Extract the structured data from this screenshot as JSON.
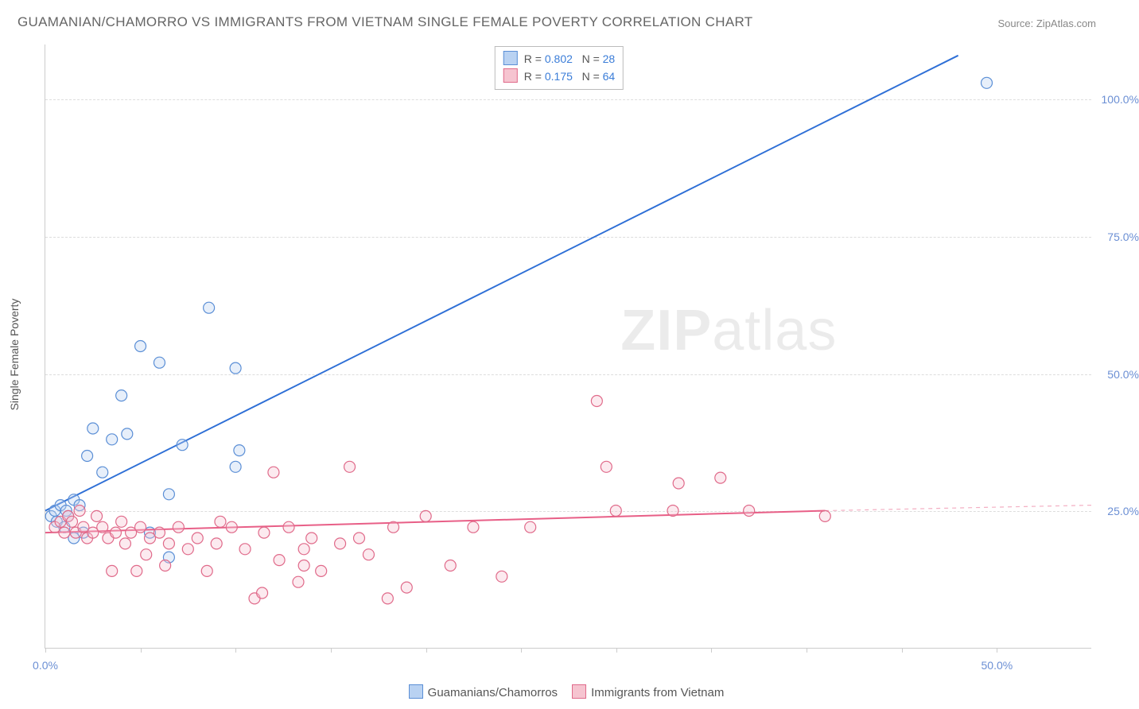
{
  "title": "GUAMANIAN/CHAMORRO VS IMMIGRANTS FROM VIETNAM SINGLE FEMALE POVERTY CORRELATION CHART",
  "source_label": "Source: ZipAtlas.com",
  "watermark": {
    "bold": "ZIP",
    "light": "atlas"
  },
  "y_axis": {
    "label": "Single Female Poverty",
    "min": 0,
    "max": 110,
    "gridlines": [
      25,
      50,
      75,
      100
    ],
    "tick_labels": [
      "25.0%",
      "50.0%",
      "75.0%",
      "100.0%"
    ],
    "label_color": "#6b8fd4",
    "label_fontsize": 14
  },
  "x_axis": {
    "min": 0,
    "max": 55,
    "ticks_minor": [
      5,
      10,
      15,
      20,
      25,
      30,
      35,
      40,
      45
    ],
    "ticks_labeled": [
      0,
      50
    ],
    "tick_labels": [
      "0.0%",
      "50.0%"
    ],
    "label_color": "#6b8fd4"
  },
  "legend_bottom": {
    "items": [
      {
        "label": "Guamanians/Chamorros",
        "fill": "#b9d2f2",
        "border": "#5b8fd6"
      },
      {
        "label": "Immigrants from Vietnam",
        "fill": "#f6c4d0",
        "border": "#e06a8a"
      }
    ]
  },
  "legend_stats": {
    "rows": [
      {
        "fill": "#b9d2f2",
        "border": "#5b8fd6",
        "r_label": "R =",
        "r": "0.802",
        "n_label": "N =",
        "n": "28"
      },
      {
        "fill": "#f6c4d0",
        "border": "#e06a8a",
        "r_label": "R =",
        "r": "0.175",
        "n_label": "N =",
        "n": "64"
      }
    ]
  },
  "styles": {
    "background": "#ffffff",
    "grid_color": "#dddddd",
    "axis_color": "#cccccc",
    "title_color": "#666666",
    "marker_radius": 7,
    "marker_stroke_width": 1.2,
    "marker_fill_opacity": 0.35,
    "line_width": 2
  },
  "series": [
    {
      "name": "Guamanians/Chamorros",
      "fill": "#b9d2f2",
      "stroke": "#5b8fd6",
      "line_color": "#2e6fd6",
      "regression": {
        "x1": 0,
        "y1": 25,
        "x2": 48,
        "y2": 108
      },
      "points": [
        [
          0.3,
          24
        ],
        [
          0.5,
          25
        ],
        [
          0.6,
          23
        ],
        [
          0.8,
          26
        ],
        [
          1.0,
          22
        ],
        [
          1.1,
          25
        ],
        [
          1.2,
          24
        ],
        [
          1.5,
          27
        ],
        [
          1.5,
          20
        ],
        [
          1.8,
          26
        ],
        [
          2.0,
          21
        ],
        [
          2.2,
          35
        ],
        [
          2.5,
          40
        ],
        [
          3.0,
          32
        ],
        [
          3.5,
          38
        ],
        [
          4.0,
          46
        ],
        [
          4.3,
          39
        ],
        [
          5.0,
          55
        ],
        [
          6.0,
          52
        ],
        [
          5.5,
          21
        ],
        [
          6.5,
          28
        ],
        [
          7.2,
          37
        ],
        [
          8.6,
          62
        ],
        [
          10.0,
          33
        ],
        [
          10.0,
          51
        ],
        [
          10.2,
          36
        ],
        [
          6.5,
          16.5
        ],
        [
          49.5,
          103
        ]
      ]
    },
    {
      "name": "Immigrants from Vietnam",
      "fill": "#f6c4d0",
      "stroke": "#e06a8a",
      "line_color": "#e85f87",
      "regression": {
        "x1": 0,
        "y1": 21,
        "x2": 41,
        "y2": 25
      },
      "regression_dash": {
        "x1": 41,
        "y1": 25,
        "x2": 55,
        "y2": 26
      },
      "points": [
        [
          0.5,
          22
        ],
        [
          0.8,
          23
        ],
        [
          1.0,
          21
        ],
        [
          1.2,
          24
        ],
        [
          1.4,
          23
        ],
        [
          1.6,
          21
        ],
        [
          1.8,
          25
        ],
        [
          2.0,
          22
        ],
        [
          2.2,
          20
        ],
        [
          2.5,
          21
        ],
        [
          2.7,
          24
        ],
        [
          3.0,
          22
        ],
        [
          3.3,
          20
        ],
        [
          3.5,
          14
        ],
        [
          3.7,
          21
        ],
        [
          4.0,
          23
        ],
        [
          4.2,
          19
        ],
        [
          4.5,
          21
        ],
        [
          4.8,
          14
        ],
        [
          5.0,
          22
        ],
        [
          5.3,
          17
        ],
        [
          5.5,
          20
        ],
        [
          6.0,
          21
        ],
        [
          6.3,
          15
        ],
        [
          6.5,
          19
        ],
        [
          7.0,
          22
        ],
        [
          7.5,
          18
        ],
        [
          8.0,
          20
        ],
        [
          8.5,
          14
        ],
        [
          9.0,
          19
        ],
        [
          9.2,
          23
        ],
        [
          9.8,
          22
        ],
        [
          10.5,
          18
        ],
        [
          11.0,
          9
        ],
        [
          11.4,
          10
        ],
        [
          11.5,
          21
        ],
        [
          12.0,
          32
        ],
        [
          12.3,
          16
        ],
        [
          12.8,
          22
        ],
        [
          13.3,
          12
        ],
        [
          13.6,
          15
        ],
        [
          13.6,
          18
        ],
        [
          14.0,
          20
        ],
        [
          14.5,
          14
        ],
        [
          15.5,
          19
        ],
        [
          16.0,
          33
        ],
        [
          16.5,
          20
        ],
        [
          17.0,
          17
        ],
        [
          18.0,
          9
        ],
        [
          18.3,
          22
        ],
        [
          19.0,
          11
        ],
        [
          20.0,
          24
        ],
        [
          21.3,
          15
        ],
        [
          22.5,
          22
        ],
        [
          24.0,
          13
        ],
        [
          25.5,
          22
        ],
        [
          29.0,
          45
        ],
        [
          29.5,
          33
        ],
        [
          30.0,
          25
        ],
        [
          33.0,
          25
        ],
        [
          33.3,
          30
        ],
        [
          35.5,
          31
        ],
        [
          37.0,
          25
        ],
        [
          41.0,
          24
        ]
      ]
    }
  ]
}
